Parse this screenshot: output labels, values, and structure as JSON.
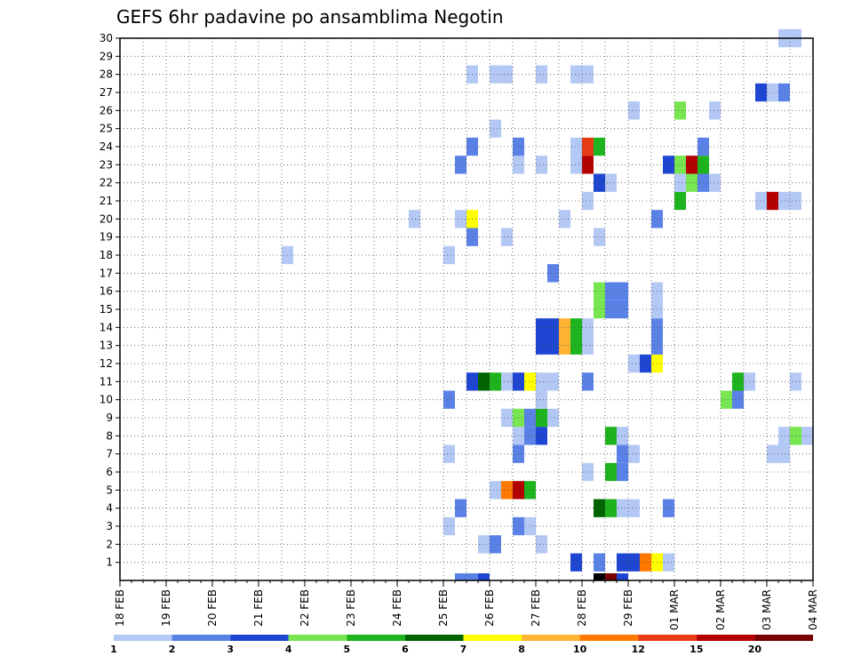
{
  "chart_data": {
    "type": "heatmap",
    "title": "GEFS 6hr padavine po ansamblima Negotin",
    "xlabel": "",
    "ylabel": "",
    "x_ticks": [
      "18 FEB",
      "19 FEB",
      "20 FEB",
      "21 FEB",
      "22 FEB",
      "23 FEB",
      "24 FEB",
      "25 FEB",
      "26 FEB",
      "27 FEB",
      "28 FEB",
      "29 FEB",
      "01 MAR",
      "02 MAR",
      "03 MAR",
      "04 MAR"
    ],
    "y_ticks": [
      1,
      2,
      3,
      4,
      5,
      6,
      7,
      8,
      9,
      10,
      11,
      12,
      13,
      14,
      15,
      16,
      17,
      18,
      19,
      20,
      21,
      22,
      23,
      24,
      25,
      26,
      27,
      28,
      29,
      30
    ],
    "x_unit": "6-hour steps from 18 FEB",
    "ylim": [
      0,
      30
    ],
    "grid": true,
    "legend": {
      "placement": "bottom",
      "labels": [
        "1",
        "2",
        "3",
        "4",
        "5",
        "6",
        "7",
        "8",
        "10",
        "12",
        "15",
        "20"
      ],
      "colors": [
        "#b4c8f5",
        "#5a82e6",
        "#1e46d2",
        "#78e650",
        "#1eb41e",
        "#006400",
        "#ffff00",
        "#ffb432",
        "#ff7800",
        "#e63c14",
        "#b40000",
        "#780000"
      ]
    },
    "cells": [
      [
        29,
        0,
        2
      ],
      [
        30,
        0,
        2
      ],
      [
        31,
        0,
        3
      ],
      [
        41,
        0,
        13
      ],
      [
        42,
        0,
        12
      ],
      [
        43,
        0,
        3
      ],
      [
        39,
        1,
        3
      ],
      [
        41,
        1,
        2
      ],
      [
        43,
        1,
        3
      ],
      [
        44,
        1,
        3
      ],
      [
        45,
        1,
        9
      ],
      [
        46,
        1,
        7
      ],
      [
        47,
        1,
        1
      ],
      [
        31,
        2,
        1
      ],
      [
        32,
        2,
        2
      ],
      [
        36,
        2,
        1
      ],
      [
        28,
        3,
        1
      ],
      [
        34,
        3,
        2
      ],
      [
        35,
        3,
        1
      ],
      [
        29,
        4,
        2
      ],
      [
        41,
        4,
        6
      ],
      [
        42,
        4,
        5
      ],
      [
        43,
        4,
        1
      ],
      [
        44,
        4,
        1
      ],
      [
        47,
        4,
        2
      ],
      [
        32,
        5,
        1
      ],
      [
        33,
        5,
        9
      ],
      [
        34,
        5,
        11
      ],
      [
        35,
        5,
        5
      ],
      [
        40,
        6,
        1
      ],
      [
        42,
        6,
        5
      ],
      [
        43,
        6,
        2
      ],
      [
        28,
        7,
        1
      ],
      [
        34,
        7,
        2
      ],
      [
        43,
        7,
        2
      ],
      [
        44,
        7,
        1
      ],
      [
        56,
        7,
        1
      ],
      [
        57,
        7,
        1
      ],
      [
        34,
        8,
        1
      ],
      [
        35,
        8,
        2
      ],
      [
        36,
        8,
        3
      ],
      [
        42,
        8,
        5
      ],
      [
        43,
        8,
        1
      ],
      [
        57,
        8,
        1
      ],
      [
        58,
        8,
        4
      ],
      [
        59,
        8,
        1
      ],
      [
        33,
        9,
        1
      ],
      [
        34,
        9,
        4
      ],
      [
        35,
        9,
        2
      ],
      [
        36,
        9,
        5
      ],
      [
        37,
        9,
        1
      ],
      [
        28,
        10,
        2
      ],
      [
        36,
        10,
        1
      ],
      [
        52,
        10,
        4
      ],
      [
        53,
        10,
        2
      ],
      [
        30,
        11,
        3
      ],
      [
        31,
        11,
        6
      ],
      [
        32,
        11,
        5
      ],
      [
        33,
        11,
        1
      ],
      [
        34,
        11,
        3
      ],
      [
        35,
        11,
        7
      ],
      [
        36,
        11,
        1
      ],
      [
        37,
        11,
        1
      ],
      [
        40,
        11,
        2
      ],
      [
        53,
        11,
        5
      ],
      [
        54,
        11,
        1
      ],
      [
        58,
        11,
        1
      ],
      [
        44,
        12,
        1
      ],
      [
        45,
        12,
        3
      ],
      [
        46,
        12,
        7
      ],
      [
        36,
        13,
        3
      ],
      [
        37,
        13,
        3
      ],
      [
        38,
        13,
        8
      ],
      [
        39,
        13,
        5
      ],
      [
        40,
        13,
        1
      ],
      [
        46,
        13,
        2
      ],
      [
        36,
        14,
        3
      ],
      [
        37,
        14,
        3
      ],
      [
        38,
        14,
        8
      ],
      [
        39,
        14,
        5
      ],
      [
        40,
        14,
        1
      ],
      [
        46,
        14,
        2
      ],
      [
        41,
        15,
        4
      ],
      [
        42,
        15,
        2
      ],
      [
        43,
        15,
        2
      ],
      [
        46,
        15,
        1
      ],
      [
        41,
        16,
        4
      ],
      [
        42,
        16,
        2
      ],
      [
        43,
        16,
        2
      ],
      [
        46,
        16,
        1
      ],
      [
        37,
        17,
        2
      ],
      [
        14,
        18,
        1
      ],
      [
        28,
        18,
        1
      ],
      [
        30,
        19,
        2
      ],
      [
        33,
        19,
        1
      ],
      [
        41,
        19,
        1
      ],
      [
        25,
        20,
        1
      ],
      [
        29,
        20,
        1
      ],
      [
        30,
        20,
        7
      ],
      [
        38,
        20,
        1
      ],
      [
        46,
        20,
        2
      ],
      [
        40,
        21,
        1
      ],
      [
        48,
        21,
        5
      ],
      [
        55,
        21,
        1
      ],
      [
        56,
        21,
        11
      ],
      [
        57,
        21,
        1
      ],
      [
        58,
        21,
        1
      ],
      [
        41,
        22,
        3
      ],
      [
        42,
        22,
        1
      ],
      [
        48,
        22,
        1
      ],
      [
        49,
        22,
        4
      ],
      [
        50,
        22,
        2
      ],
      [
        51,
        22,
        1
      ],
      [
        29,
        23,
        2
      ],
      [
        34,
        23,
        1
      ],
      [
        36,
        23,
        1
      ],
      [
        39,
        23,
        1
      ],
      [
        40,
        23,
        11
      ],
      [
        47,
        23,
        3
      ],
      [
        48,
        23,
        4
      ],
      [
        49,
        23,
        11
      ],
      [
        50,
        23,
        5
      ],
      [
        30,
        24,
        2
      ],
      [
        34,
        24,
        2
      ],
      [
        39,
        24,
        1
      ],
      [
        40,
        24,
        10
      ],
      [
        41,
        24,
        5
      ],
      [
        50,
        24,
        2
      ],
      [
        32,
        25,
        1
      ],
      [
        44,
        26,
        1
      ],
      [
        48,
        26,
        4
      ],
      [
        51,
        26,
        1
      ],
      [
        55,
        27,
        3
      ],
      [
        56,
        27,
        1
      ],
      [
        57,
        27,
        2
      ],
      [
        30,
        28,
        1
      ],
      [
        32,
        28,
        1
      ],
      [
        33,
        28,
        1
      ],
      [
        36,
        28,
        1
      ],
      [
        39,
        28,
        1
      ],
      [
        40,
        28,
        1
      ],
      [
        57,
        30,
        1
      ],
      [
        58,
        30,
        1
      ]
    ]
  }
}
